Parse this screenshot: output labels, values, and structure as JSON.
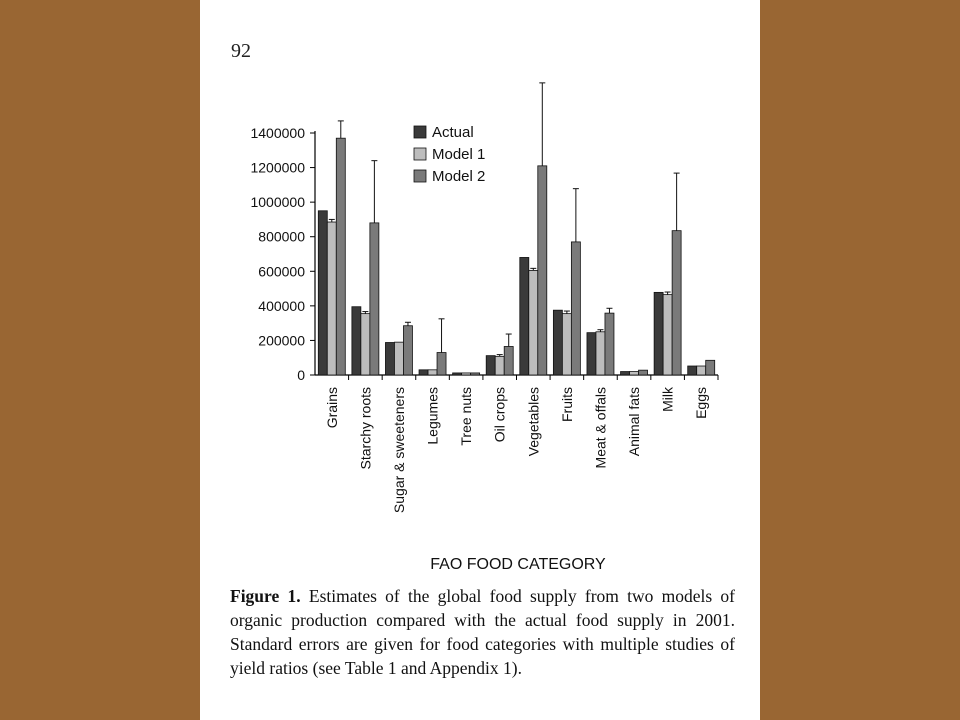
{
  "page": {
    "number": "92",
    "caption_label": "Figure 1.",
    "caption_text": "Estimates of the global food supply from two models of organic production compared with the actual food supply in 2001. Standard errors are given for food categories with multiple studies of yield ratios (see Table 1 and Appendix 1)."
  },
  "colors": {
    "background": "#996633",
    "actual": "#3a3a3a",
    "model1": "#bdbdbd",
    "model2": "#7a7a7a"
  },
  "chart_data": {
    "type": "bar",
    "title": "",
    "xlabel": "FAO FOOD CATEGORY",
    "ylabel": "",
    "ylim": [
      0,
      1400000
    ],
    "yticks": [
      "0",
      "200000",
      "400000",
      "600000",
      "800000",
      "1000000",
      "1200000",
      "1400000"
    ],
    "legend_position": "top-left",
    "grid": false,
    "categories": [
      "Grains",
      "Starchy roots",
      "Sugar & sweeteners",
      "Legumes",
      "Tree nuts",
      "Oil crops",
      "Vegetables",
      "Fruits",
      "Meat & offals",
      "Animal fats",
      "Milk",
      "Eggs"
    ],
    "series": [
      {
        "name": "Actual",
        "values": [
          950000,
          395000,
          188000,
          30000,
          12000,
          112000,
          680000,
          375000,
          245000,
          20000,
          478000,
          52000
        ],
        "errors": [
          0,
          0,
          0,
          0,
          0,
          0,
          0,
          0,
          0,
          0,
          0,
          0
        ]
      },
      {
        "name": "Model 1",
        "values": [
          885000,
          355000,
          190000,
          30000,
          12000,
          108000,
          605000,
          355000,
          250000,
          20000,
          465000,
          52000
        ],
        "errors": [
          15000,
          12000,
          0,
          0,
          0,
          10000,
          12000,
          15000,
          12000,
          0,
          15000,
          0
        ]
      },
      {
        "name": "Model 2",
        "values": [
          1370000,
          880000,
          285000,
          130000,
          12000,
          165000,
          1210000,
          770000,
          358000,
          28000,
          835000,
          85000
        ],
        "errors": [
          100000,
          360000,
          20000,
          195000,
          0,
          72000,
          480000,
          308000,
          28000,
          0,
          333000,
          0
        ]
      }
    ]
  }
}
